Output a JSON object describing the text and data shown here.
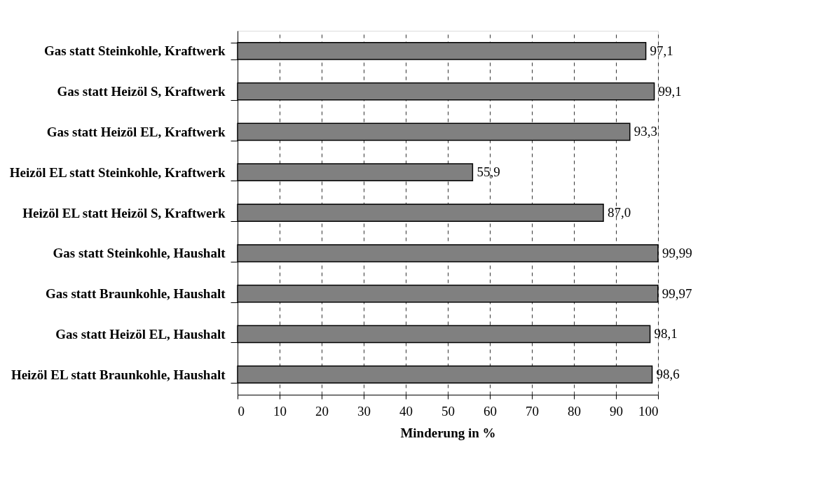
{
  "chart_data": {
    "type": "bar",
    "orientation": "horizontal",
    "xlabel": "Minderung in %",
    "categories": [
      "Gas statt Steinkohle,  Kraftwerk",
      "Gas statt Heizöl S, Kraftwerk",
      "Gas statt Heizöl EL, Kraftwerk",
      "Heizöl EL statt Steinkohle, Kraftwerk",
      "Heizöl EL statt Heizöl S, Kraftwerk",
      "Gas statt Steinkohle, Haushalt",
      "Gas statt Braunkohle, Haushalt",
      "Gas statt Heizöl EL, Haushalt",
      "Heizöl EL statt Braunkohle, Haushalt"
    ],
    "values": [
      97.1,
      99.1,
      93.3,
      55.9,
      87.0,
      99.99,
      99.97,
      98.1,
      98.6
    ],
    "value_labels": [
      "97,1",
      "99,1",
      "93,3",
      "55,9",
      "87,0",
      "99,99",
      "99,97",
      "98,1",
      "98,6"
    ],
    "color": "#808080",
    "xlim": [
      0,
      100
    ],
    "xticks": [
      0,
      10,
      20,
      30,
      40,
      50,
      60,
      70,
      80,
      90,
      100
    ],
    "grid": "x"
  }
}
